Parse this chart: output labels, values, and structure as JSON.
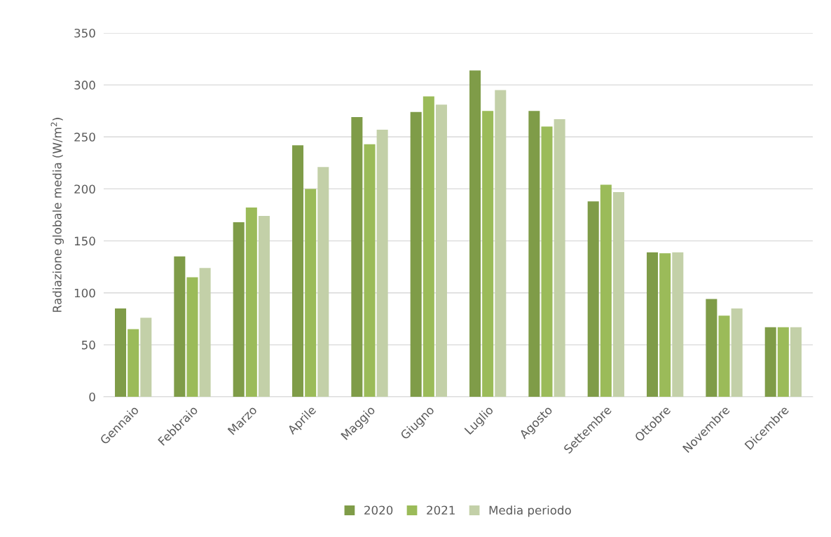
{
  "chart_data": {
    "type": "bar",
    "ylabel": "Radiazione globale media (W/m$^{2}$)",
    "categories": [
      "Gennaio",
      "Febbraio",
      "Marzo",
      "Aprile",
      "Maggio",
      "Giugno",
      "Luglio",
      "Agosto",
      "Settembre",
      "Ottobre",
      "Novembre",
      "Dicembre"
    ],
    "series": [
      {
        "name": "2020",
        "color": "#7f9c48",
        "values": [
          85,
          135,
          168,
          242,
          269,
          274,
          314,
          275,
          188,
          139,
          94,
          67
        ]
      },
      {
        "name": "2021",
        "color": "#9bbb59",
        "values": [
          65,
          115,
          182,
          200,
          243,
          289,
          275,
          260,
          204,
          138,
          78,
          67
        ]
      },
      {
        "name": "Media periodo",
        "color": "#c3d0a8",
        "values": [
          76,
          124,
          174,
          221,
          257,
          281,
          295,
          267,
          197,
          139,
          85,
          67
        ]
      }
    ],
    "ylim": [
      0,
      350
    ],
    "yticks": [
      0,
      50,
      100,
      150,
      200,
      250,
      300,
      350
    ],
    "grid": "y",
    "legend": "bottom"
  }
}
